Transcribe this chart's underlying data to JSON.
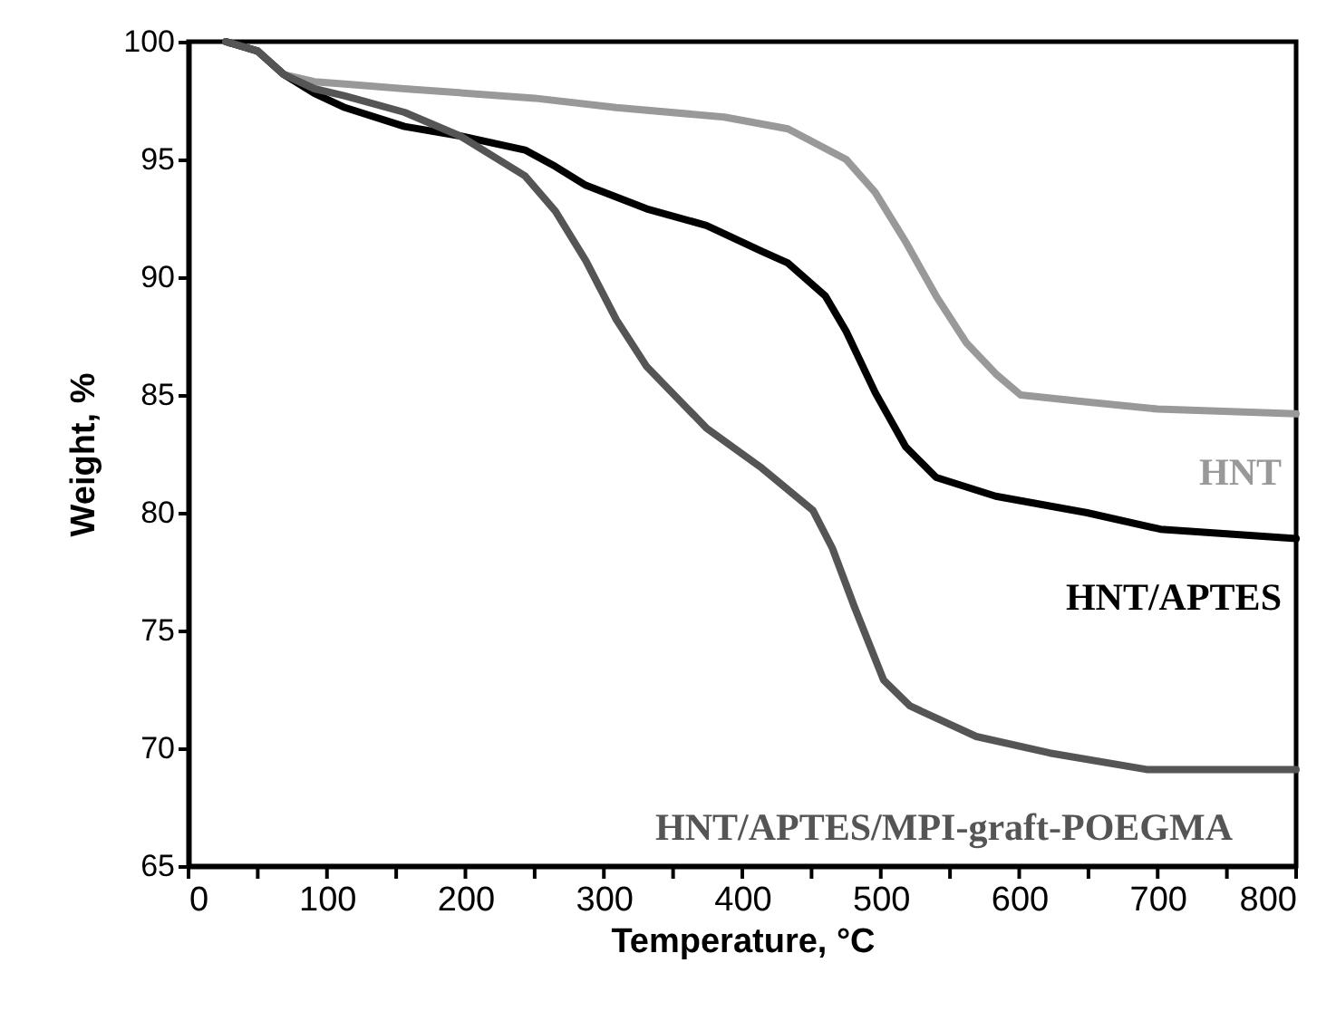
{
  "chart_data": {
    "type": "line",
    "xlabel": "Temperature, °C",
    "ylabel": "Weight, %",
    "xlim": [
      0,
      800
    ],
    "ylim": [
      65,
      100
    ],
    "xticks": [
      0,
      {
        "value": 50,
        "label": null
      },
      100,
      {
        "value": 150,
        "label": null
      },
      200,
      {
        "value": 250,
        "label": null
      },
      300,
      {
        "value": 350,
        "label": null
      },
      400,
      {
        "value": 450,
        "label": null
      },
      500,
      {
        "value": 550,
        "label": null
      },
      600,
      {
        "value": 650,
        "label": null
      },
      700,
      {
        "value": 750,
        "label": null
      },
      800
    ],
    "yticks": [
      65,
      70,
      75,
      80,
      85,
      90,
      95,
      100
    ],
    "grid": false,
    "marker": "none",
    "line_style": "solid",
    "series": [
      {
        "name": "HNT",
        "color": "#999999",
        "x": [
          27,
          50,
          69,
          91,
          113,
          156,
          250,
          309,
          387,
          433,
          475,
          496,
          518,
          540,
          562,
          583,
          601,
          649,
          700,
          800
        ],
        "values": [
          100,
          99.6,
          98.6,
          98.3,
          98.2,
          98.0,
          97.6,
          97.2,
          96.8,
          96.3,
          95.0,
          93.6,
          91.5,
          89.2,
          87.2,
          85.9,
          85.0,
          84.7,
          84.4,
          84.2
        ]
      },
      {
        "name": "HNT/APTES",
        "color": "#000000",
        "x": [
          27,
          50,
          69,
          91,
          113,
          156,
          196,
          243,
          265,
          287,
          309,
          331,
          374,
          414,
          433,
          460,
          475,
          496,
          518,
          540,
          583,
          649,
          702,
          800
        ],
        "values": [
          100,
          99.6,
          98.6,
          97.8,
          97.2,
          96.4,
          96.0,
          95.4,
          94.7,
          93.9,
          93.4,
          92.9,
          92.2,
          91.1,
          90.6,
          89.2,
          87.7,
          85.1,
          82.8,
          81.5,
          80.7,
          80.0,
          79.3,
          78.9
        ]
      },
      {
        "name": "HNT/APTES/MPI-graft-POEGMA",
        "color": "#555555",
        "x": [
          27,
          50,
          69,
          91,
          113,
          156,
          196,
          243,
          265,
          287,
          309,
          331,
          374,
          414,
          451,
          465,
          481,
          502,
          521,
          569,
          622,
          692,
          800
        ],
        "values": [
          100,
          99.6,
          98.6,
          98.0,
          97.7,
          97.0,
          96.0,
          94.3,
          92.8,
          90.7,
          88.2,
          86.2,
          83.6,
          81.9,
          80.1,
          78.5,
          76.0,
          72.9,
          71.8,
          70.5,
          69.8,
          69.1,
          69.1
        ]
      }
    ]
  }
}
